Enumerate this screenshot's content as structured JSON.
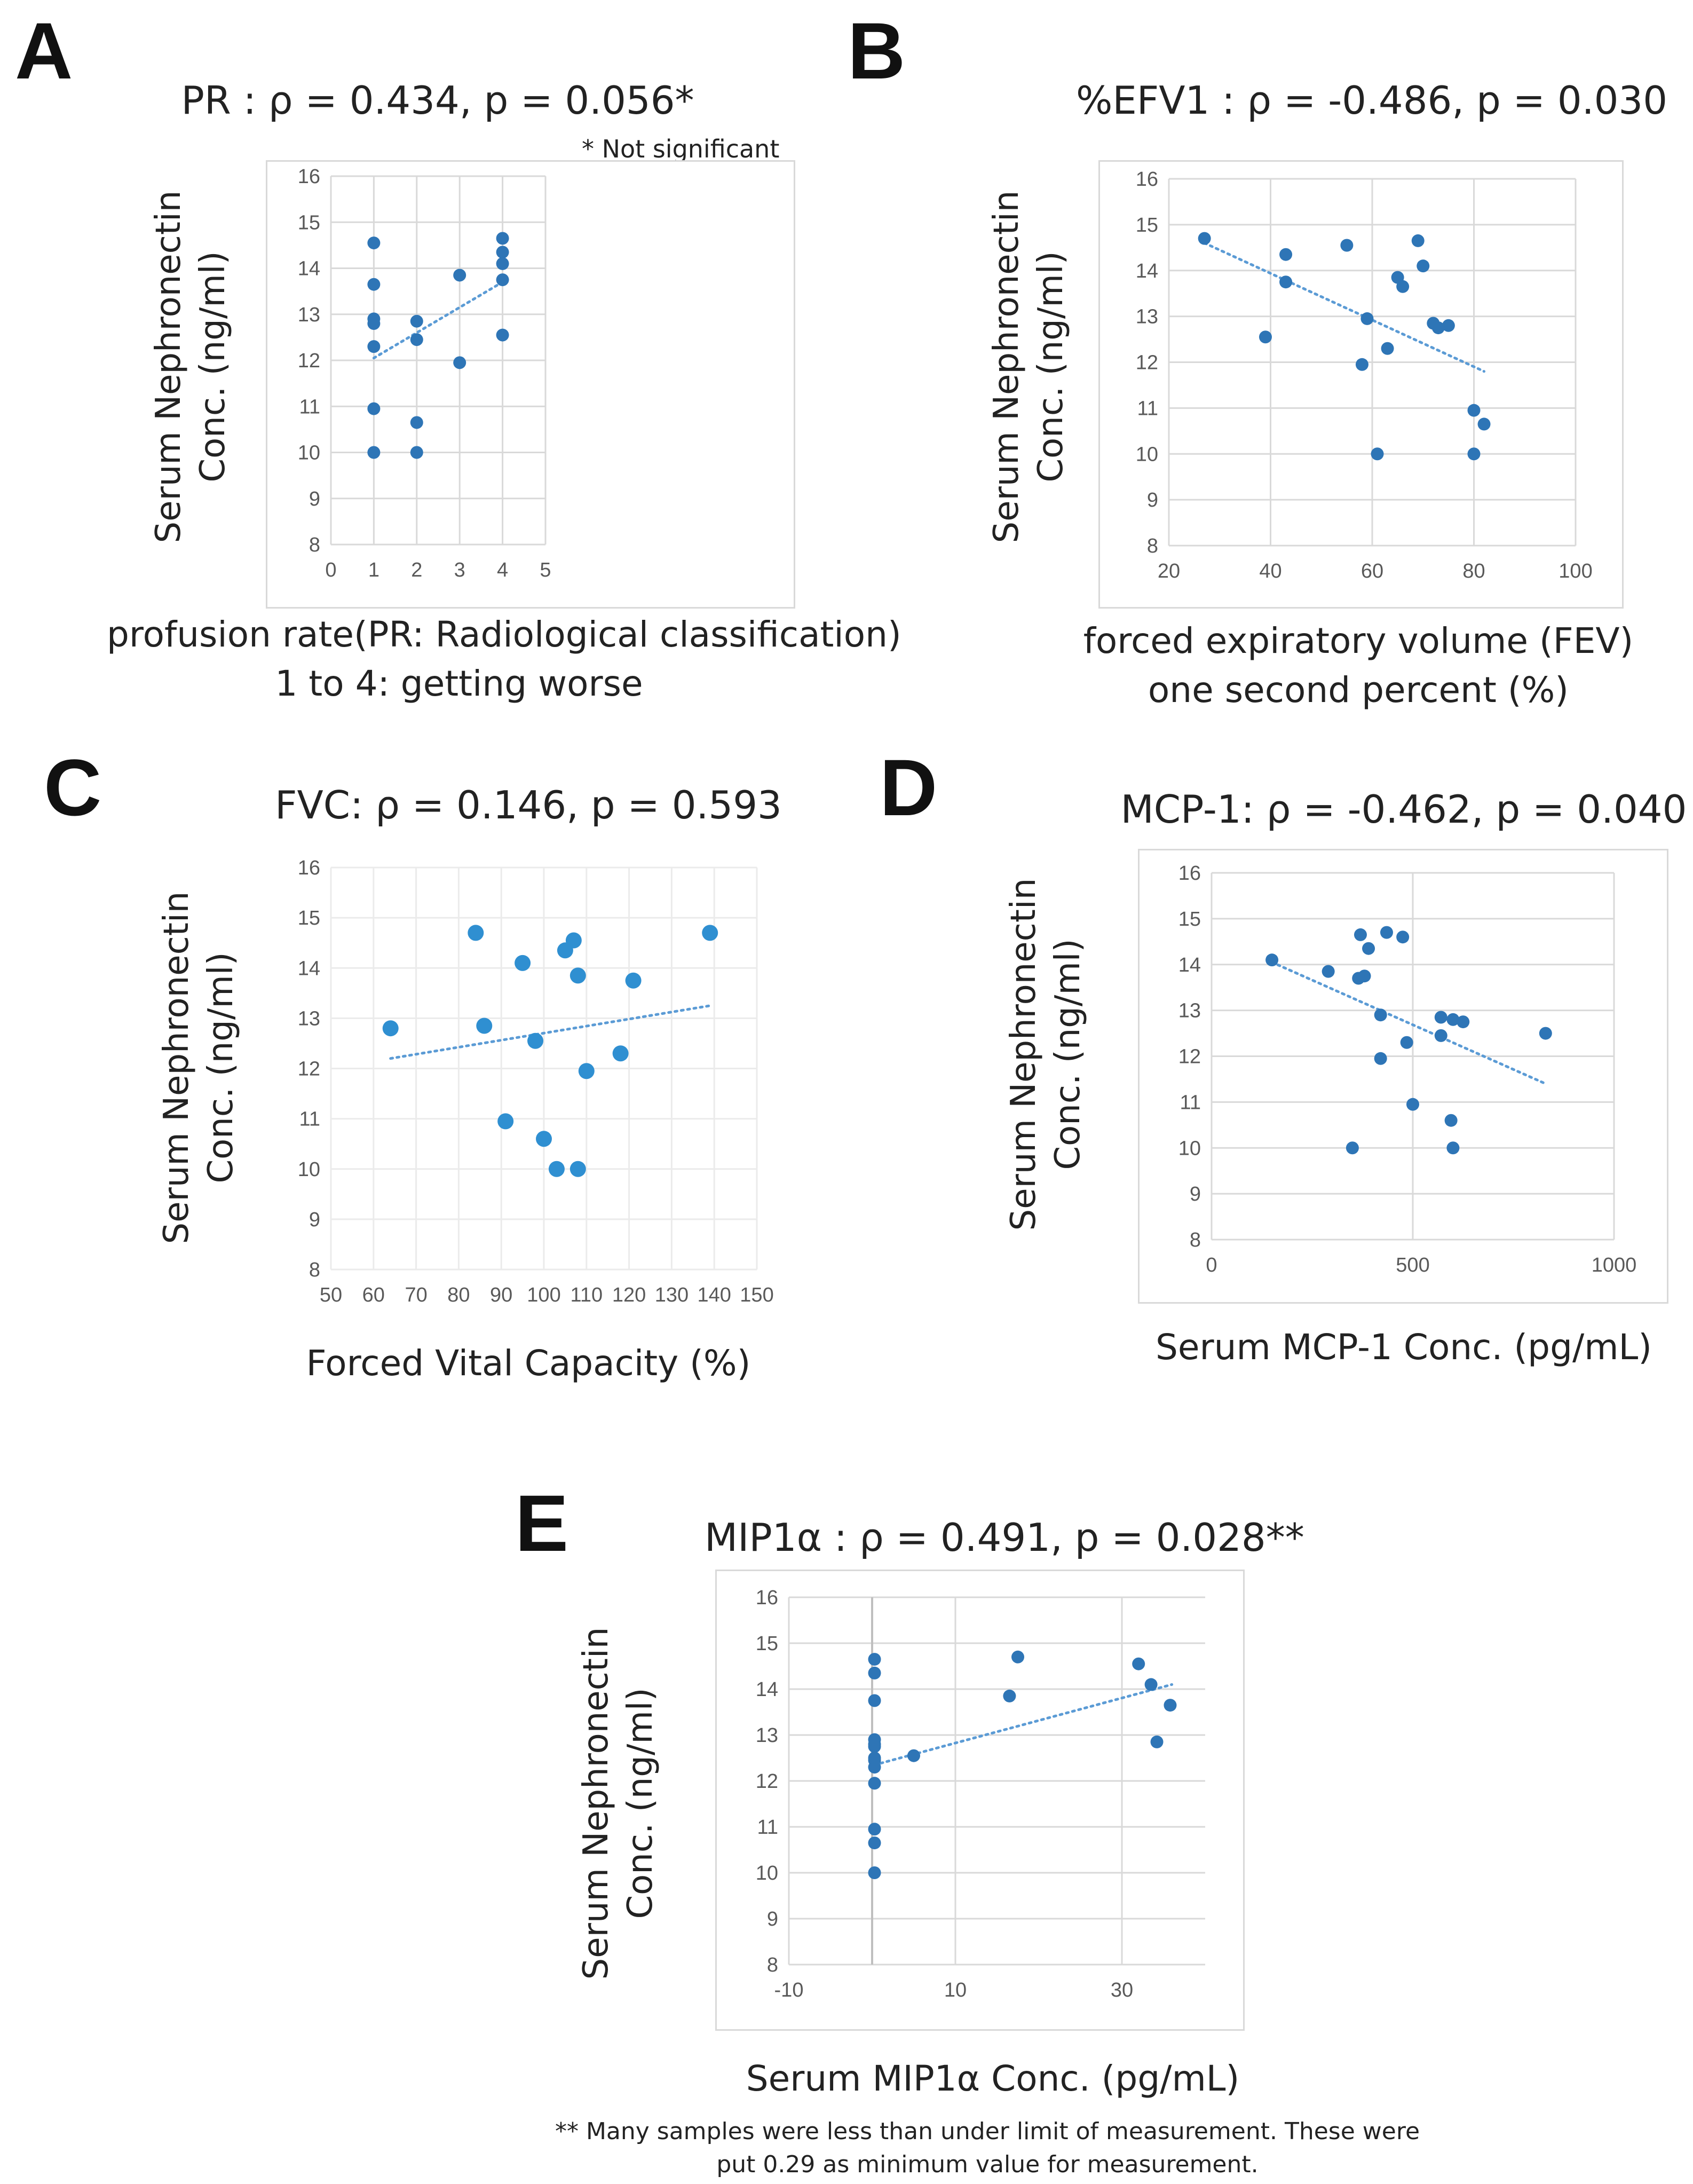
{
  "footnote_line1": "** Many samples were less than under limit of measurement. These were",
  "footnote_line2": "put 0.29 as minimum value for measurement.",
  "colors": {
    "points": "#2e75b6",
    "trend": "#5b9bd5",
    "grid": "#d9d9d9",
    "tick": "#595959"
  },
  "chart_data": [
    {
      "panel": "A",
      "type": "scatter",
      "title": "PR : ρ = 0.434, p = 0.056*",
      "note": "* Not significant",
      "ylabel_line1": "Serum Nephronectin",
      "ylabel_line2": "Conc. (ng/ml)",
      "xlabel_line1": "profusion rate(PR: Radiological classification)",
      "xlabel_line2": "1 to 4: getting worse",
      "xlim": [
        0,
        5
      ],
      "xticks": [
        0,
        1,
        2,
        3,
        4,
        5
      ],
      "ylim": [
        8,
        16
      ],
      "yticks": [
        8,
        9,
        10,
        11,
        12,
        13,
        14,
        15,
        16
      ],
      "x": [
        1,
        1,
        1,
        1,
        1,
        1,
        1,
        2,
        2,
        2,
        2,
        3,
        3,
        4,
        4,
        4,
        4,
        4
      ],
      "y": [
        14.55,
        13.65,
        12.9,
        12.8,
        12.3,
        10.95,
        10.0,
        12.85,
        12.45,
        10.65,
        10.0,
        13.85,
        11.95,
        14.65,
        14.35,
        14.1,
        13.75,
        12.55
      ],
      "trend": [
        [
          1,
          12.05
        ],
        [
          4,
          13.7
        ]
      ]
    },
    {
      "panel": "B",
      "type": "scatter",
      "title": "%EFV1 : ρ = -0.486, p = 0.030",
      "ylabel_line1": "Serum Nephronectin",
      "ylabel_line2": "Conc. (ng/ml)",
      "xlabel_line1": "forced expiratory volume (FEV)",
      "xlabel_line2": "one second percent (%)",
      "xlim": [
        20,
        100
      ],
      "xticks": [
        20,
        40,
        60,
        80,
        100
      ],
      "ylim": [
        8,
        16
      ],
      "yticks": [
        8,
        9,
        10,
        11,
        12,
        13,
        14,
        15,
        16
      ],
      "x": [
        27,
        43,
        43,
        55,
        69,
        70,
        65,
        66,
        59,
        72,
        75,
        73,
        63,
        58,
        39,
        80,
        82,
        61,
        80
      ],
      "y": [
        14.7,
        14.35,
        13.75,
        14.55,
        14.65,
        14.1,
        13.85,
        13.65,
        12.95,
        12.85,
        12.8,
        12.75,
        12.3,
        11.95,
        12.55,
        10.95,
        10.65,
        10.0,
        10.0
      ],
      "trend": [
        [
          27,
          14.6
        ],
        [
          82,
          11.8
        ]
      ]
    },
    {
      "panel": "C",
      "type": "scatter",
      "title": "FVC: ρ = 0.146, p = 0.593",
      "ylabel_line1": "Serum Nephronectin",
      "ylabel_line2": "Conc. (ng/ml)",
      "xlabel_line1": "Forced Vital Capacity (%)",
      "xlim": [
        50,
        150
      ],
      "xticks": [
        50,
        60,
        70,
        80,
        90,
        100,
        110,
        120,
        130,
        140,
        150
      ],
      "ylim": [
        8,
        16
      ],
      "yticks": [
        8,
        9,
        10,
        11,
        12,
        13,
        14,
        15,
        16
      ],
      "x": [
        64,
        84,
        95,
        105,
        107,
        108,
        121,
        139,
        86,
        98,
        118,
        110,
        91,
        100,
        103,
        108
      ],
      "y": [
        12.8,
        14.7,
        14.1,
        14.35,
        14.55,
        13.85,
        13.75,
        14.7,
        12.85,
        12.55,
        12.3,
        11.95,
        10.95,
        10.6,
        10.0,
        10.0
      ],
      "trend": [
        [
          64,
          12.2
        ],
        [
          139,
          13.25
        ]
      ]
    },
    {
      "panel": "D",
      "type": "scatter",
      "title": "MCP-1: ρ = -0.462, p = 0.040",
      "ylabel_line1": "Serum Nephronectin",
      "ylabel_line2": "Conc. (ng/ml)",
      "xlabel_line1": "Serum MCP-1 Conc. (pg/mL)",
      "xlim": [
        0,
        1000
      ],
      "xticks": [
        0,
        500,
        1000
      ],
      "ylim": [
        8,
        16
      ],
      "yticks": [
        8,
        9,
        10,
        11,
        12,
        13,
        14,
        15,
        16
      ],
      "x": [
        150,
        290,
        370,
        380,
        390,
        365,
        435,
        475,
        420,
        570,
        600,
        625,
        830,
        485,
        570,
        420,
        500,
        595,
        350,
        600
      ],
      "y": [
        14.1,
        13.85,
        14.65,
        13.75,
        14.35,
        13.7,
        14.7,
        14.6,
        12.9,
        12.85,
        12.8,
        12.75,
        12.5,
        12.3,
        12.45,
        11.95,
        10.95,
        10.6,
        10.0,
        10.0
      ],
      "trend": [
        [
          150,
          14.05
        ],
        [
          830,
          11.4
        ]
      ]
    },
    {
      "panel": "E",
      "type": "scatter",
      "title": "MIP1α : ρ = 0.491, p = 0.028**",
      "ylabel_line1": "Serum Nephronectin",
      "ylabel_line2": "Conc. (ng/ml)",
      "xlabel_line1": "Serum MIP1α Conc. (pg/mL)",
      "xlim": [
        -10,
        40
      ],
      "xticks": [
        -10,
        10,
        30
      ],
      "ylim": [
        8,
        16
      ],
      "yticks": [
        8,
        9,
        10,
        11,
        12,
        13,
        14,
        15,
        16
      ],
      "x": [
        0.29,
        0.29,
        0.29,
        0.29,
        0.29,
        0.29,
        0.29,
        0.29,
        0.29,
        0.29,
        0.29,
        0.29,
        0.29,
        5,
        16.5,
        17.5,
        32,
        33.5,
        35.8,
        34.2
      ],
      "y": [
        14.65,
        14.35,
        13.75,
        12.9,
        12.8,
        12.75,
        12.5,
        12.45,
        12.3,
        11.95,
        10.95,
        10.65,
        10.0,
        12.55,
        13.85,
        14.7,
        14.55,
        14.1,
        13.65,
        12.85
      ],
      "trend": [
        [
          0.29,
          12.35
        ],
        [
          36,
          14.1
        ]
      ]
    }
  ]
}
